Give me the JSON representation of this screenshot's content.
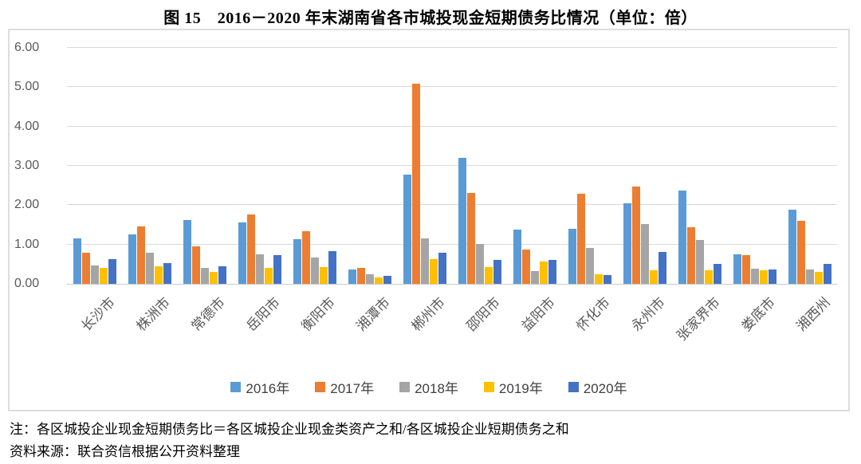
{
  "title": "图 15　2016－2020 年末湖南省各市城投现金短期债务比情况（单位：倍）",
  "footnote": "注：各区城投企业现金短期债务比＝各区城投企业现金类资产之和/各区城投企业短期债务之和",
  "source": "资料来源：联合资信根据公开资料整理",
  "chart_data": {
    "type": "bar",
    "title": "图 15　2016－2020 年末湖南省各市城投现金短期债务比情况（单位：倍）",
    "xlabel": "",
    "ylabel": "",
    "ylim": [
      0,
      6
    ],
    "y_ticks": [
      "0.00",
      "1.00",
      "2.00",
      "3.00",
      "4.00",
      "5.00",
      "6.00"
    ],
    "grid": true,
    "legend_position": "bottom",
    "categories": [
      "长沙市",
      "株洲市",
      "常德市",
      "岳阳市",
      "衡阳市",
      "湘潭市",
      "郴州市",
      "邵阳市",
      "益阳市",
      "怀化市",
      "永州市",
      "张家界市",
      "娄底市",
      "湘西州"
    ],
    "series": [
      {
        "name": "2016年",
        "color": "#5B9BD5",
        "values": [
          1.15,
          1.26,
          1.63,
          1.57,
          1.14,
          0.37,
          2.78,
          3.2,
          1.38,
          1.4,
          2.04,
          2.38,
          0.75,
          1.88
        ]
      },
      {
        "name": "2017年",
        "color": "#ED7D31",
        "values": [
          0.79,
          1.45,
          0.95,
          1.77,
          1.33,
          0.4,
          5.08,
          2.31,
          0.87,
          2.3,
          2.48,
          1.44,
          0.72,
          1.61
        ]
      },
      {
        "name": "2018年",
        "color": "#A5A5A5",
        "values": [
          0.47,
          0.79,
          0.4,
          0.75,
          0.66,
          0.24,
          1.15,
          1.02,
          0.33,
          0.92,
          1.53,
          1.11,
          0.39,
          0.36
        ]
      },
      {
        "name": "2019年",
        "color": "#FFC000",
        "values": [
          0.41,
          0.45,
          0.3,
          0.41,
          0.43,
          0.16,
          0.63,
          0.42,
          0.56,
          0.25,
          0.35,
          0.35,
          0.35,
          0.3
        ]
      },
      {
        "name": "2020年",
        "color": "#4472C4",
        "values": [
          0.63,
          0.52,
          0.45,
          0.73,
          0.83,
          0.2,
          0.79,
          0.6,
          0.61,
          0.22,
          0.82,
          0.5,
          0.37,
          0.51
        ]
      }
    ]
  }
}
